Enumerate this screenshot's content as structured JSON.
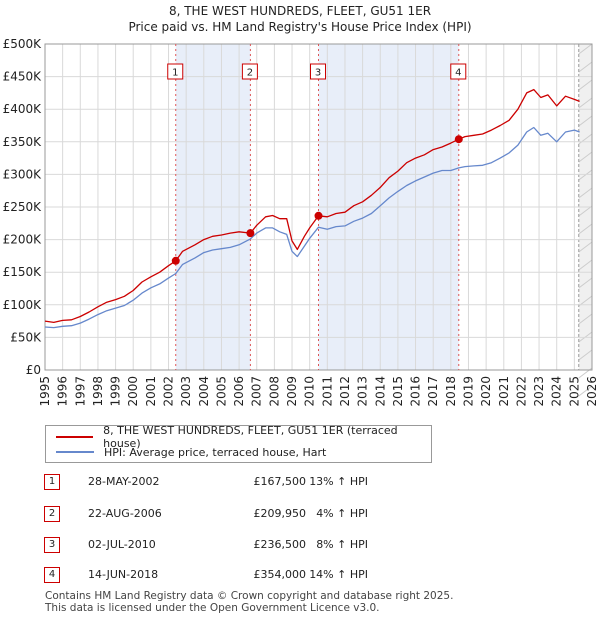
{
  "chart_data": {
    "type": "line",
    "title": "8, THE WEST HUNDREDS, FLEET, GU51 1ER",
    "subtitle": "Price paid vs. HM Land Registry's House Price Index (HPI)",
    "xlim": [
      1995,
      2026
    ],
    "ylim": [
      0,
      500000
    ],
    "x_ticks": [
      1995,
      1996,
      1997,
      1998,
      1999,
      2000,
      2001,
      2002,
      2003,
      2004,
      2005,
      2006,
      2007,
      2008,
      2009,
      2010,
      2011,
      2012,
      2013,
      2014,
      2015,
      2016,
      2017,
      2018,
      2019,
      2020,
      2021,
      2022,
      2023,
      2024,
      2025,
      2026
    ],
    "x_tick_labels": [
      "1995",
      "1996",
      "1997",
      "1998",
      "1999",
      "2000",
      "2001",
      "2002",
      "2003",
      "2004",
      "2005",
      "2006",
      "2007",
      "2008",
      "2009",
      "2010",
      "2011",
      "2012",
      "2013",
      "2014",
      "2015",
      "2016",
      "2017",
      "2018",
      "2019",
      "2020",
      "2021",
      "2022",
      "2023",
      "2024",
      "2025",
      "2026"
    ],
    "y_ticks": [
      0,
      50000,
      100000,
      150000,
      200000,
      250000,
      300000,
      350000,
      400000,
      450000,
      500000
    ],
    "y_tick_labels": [
      "£0",
      "£50K",
      "£100K",
      "£150K",
      "£200K",
      "£250K",
      "£300K",
      "£350K",
      "£400K",
      "£450K",
      "£500K"
    ],
    "shaded_ranges": [
      [
        2002.41,
        2006.64
      ],
      [
        2010.5,
        2018.45
      ]
    ],
    "future_start": 2025.25,
    "series": [
      {
        "name": "8, THE WEST HUNDREDS, FLEET, GU51 1ER (terraced house)",
        "color": "#cc0000",
        "x": [
          1995,
          1995.5,
          1996,
          1996.5,
          1997,
          1997.5,
          1998,
          1998.5,
          1999,
          1999.5,
          2000,
          2000.5,
          2001,
          2001.5,
          2002,
          2002.41,
          2002.8,
          2003.5,
          2004,
          2004.5,
          2005,
          2005.5,
          2006,
          2006.64,
          2007,
          2007.5,
          2007.9,
          2008.3,
          2008.7,
          2009,
          2009.3,
          2009.7,
          2010,
          2010.5,
          2011,
          2011.5,
          2012,
          2012.5,
          2013,
          2013.5,
          2014,
          2014.5,
          2015,
          2015.5,
          2016,
          2016.5,
          2017,
          2017.5,
          2018,
          2018.45,
          2018.8,
          2019.3,
          2019.8,
          2020.3,
          2020.8,
          2021.3,
          2021.8,
          2022.3,
          2022.7,
          2023.1,
          2023.5,
          2024,
          2024.5,
          2025,
          2025.3
        ],
        "y": [
          75000,
          73000,
          76000,
          77000,
          82000,
          89000,
          97000,
          104000,
          108000,
          113000,
          122000,
          135000,
          143000,
          150000,
          160000,
          167500,
          182000,
          192000,
          200000,
          205000,
          207000,
          210000,
          212000,
          209950,
          222000,
          235000,
          237000,
          232000,
          232000,
          198000,
          185000,
          205000,
          218000,
          236500,
          235000,
          240000,
          242000,
          252000,
          258000,
          268000,
          280000,
          295000,
          305000,
          318000,
          325000,
          330000,
          338000,
          342000,
          348000,
          354000,
          358000,
          360000,
          362000,
          368000,
          375000,
          383000,
          400000,
          425000,
          430000,
          418000,
          422000,
          405000,
          420000,
          415000,
          412000
        ]
      },
      {
        "name": "HPI: Average price, terraced house, Hart",
        "color": "#6688cc",
        "x": [
          1995,
          1995.5,
          1996,
          1996.5,
          1997,
          1997.5,
          1998,
          1998.5,
          1999,
          1999.5,
          2000,
          2000.5,
          2001,
          2001.5,
          2002,
          2002.41,
          2002.8,
          2003.5,
          2004,
          2004.5,
          2005,
          2005.5,
          2006,
          2006.64,
          2007,
          2007.5,
          2007.9,
          2008.3,
          2008.7,
          2009,
          2009.3,
          2009.7,
          2010,
          2010.5,
          2011,
          2011.5,
          2012,
          2012.5,
          2013,
          2013.5,
          2014,
          2014.5,
          2015,
          2015.5,
          2016,
          2016.5,
          2017,
          2017.5,
          2018,
          2018.45,
          2018.8,
          2019.3,
          2019.8,
          2020.3,
          2020.8,
          2021.3,
          2021.8,
          2022.3,
          2022.7,
          2023.1,
          2023.5,
          2024,
          2024.5,
          2025,
          2025.3
        ],
        "y": [
          66000,
          65000,
          67000,
          68000,
          72000,
          78000,
          85000,
          91000,
          95000,
          99000,
          107000,
          118000,
          126000,
          132000,
          141000,
          148000,
          162000,
          172000,
          180000,
          184000,
          186000,
          188000,
          192000,
          201000,
          210000,
          218000,
          218000,
          212000,
          208000,
          182000,
          174000,
          190000,
          202000,
          219000,
          216000,
          220000,
          221000,
          228000,
          233000,
          240000,
          252000,
          264000,
          274000,
          283000,
          290000,
          296000,
          302000,
          306000,
          306000,
          310000,
          312000,
          313000,
          314000,
          318000,
          325000,
          333000,
          345000,
          365000,
          372000,
          360000,
          363000,
          350000,
          365000,
          368000,
          365000
        ]
      }
    ],
    "sale_points": [
      {
        "label": "1",
        "x": 2002.41,
        "y": 167500
      },
      {
        "label": "2",
        "x": 2006.64,
        "y": 209950
      },
      {
        "label": "3",
        "x": 2010.5,
        "y": 236500
      },
      {
        "label": "4",
        "x": 2018.45,
        "y": 354000
      }
    ]
  },
  "legend": {
    "property_label": "8, THE WEST HUNDREDS, FLEET, GU51 1ER (terraced house)",
    "hpi_label": "HPI: Average price, terraced house, Hart",
    "property_color": "#cc0000",
    "hpi_color": "#6688cc"
  },
  "transactions": [
    {
      "num": "1",
      "date": "28-MAY-2002",
      "price": "£167,500",
      "hpi": "13% ↑ HPI"
    },
    {
      "num": "2",
      "date": "22-AUG-2006",
      "price": "£209,950",
      "hpi": "4% ↑ HPI"
    },
    {
      "num": "3",
      "date": "02-JUL-2010",
      "price": "£236,500",
      "hpi": "8% ↑ HPI"
    },
    {
      "num": "4",
      "date": "14-JUN-2018",
      "price": "£354,000",
      "hpi": "14% ↑ HPI"
    }
  ],
  "footer": {
    "line1": "Contains HM Land Registry data © Crown copyright and database right 2025.",
    "line2": "This data is licensed under the Open Government Licence v3.0."
  }
}
